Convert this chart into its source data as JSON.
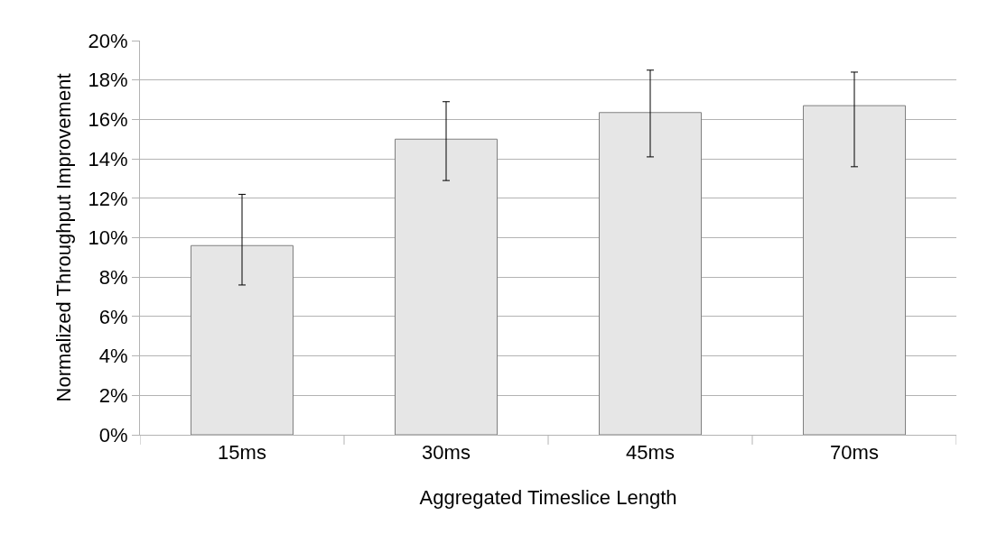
{
  "chart_data": {
    "type": "bar",
    "xlabel": "Aggregated Timeslice Length",
    "ylabel": "Normalized Throughput Improvement",
    "categories": [
      "15ms",
      "30ms",
      "45ms",
      "70ms"
    ],
    "values": [
      9.6,
      15.0,
      16.35,
      16.7
    ],
    "errors": [
      [
        7.6,
        12.2
      ],
      [
        12.9,
        16.9
      ],
      [
        14.1,
        18.5
      ],
      [
        13.6,
        18.4
      ]
    ],
    "color": "#e6e6e6",
    "ylim": [
      0,
      20
    ],
    "yticks": [
      {
        "value": 0,
        "label": "0%"
      },
      {
        "value": 2,
        "label": "2%"
      },
      {
        "value": 4,
        "label": "4%"
      },
      {
        "value": 6,
        "label": "6%"
      },
      {
        "value": 8,
        "label": "8%"
      },
      {
        "value": 10,
        "label": "10%"
      },
      {
        "value": 12,
        "label": "12%"
      },
      {
        "value": 14,
        "label": "14%"
      },
      {
        "value": 16,
        "label": "16%"
      },
      {
        "value": 18,
        "label": "18%"
      },
      {
        "value": 20,
        "label": "20%"
      }
    ],
    "grid": "y",
    "legend": false
  }
}
